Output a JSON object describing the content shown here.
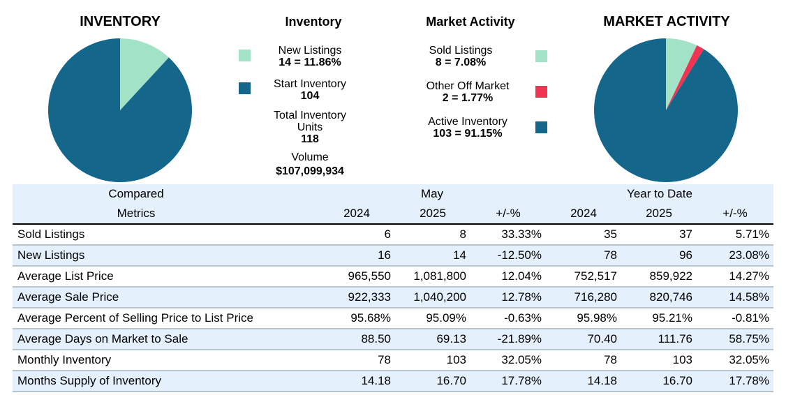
{
  "colors": {
    "light": "#a2e2c7",
    "red": "#f03553",
    "dark": "#14668a",
    "row_alt": "#e4f0fb"
  },
  "inventory_pie_title": "INVENTORY",
  "market_pie_title": "MARKET ACTIVITY",
  "inventory_legend": {
    "title": "Inventory",
    "new_listings_label": "New Listings",
    "new_listings_value": "14 = 11.86%",
    "start_inventory_label": "Start Inventory",
    "start_inventory_value": "104",
    "total_label_line1": "Total Inventory",
    "total_label_line2": "Units",
    "total_value": "118",
    "volume_label": "Volume",
    "volume_value": "$107,099,934"
  },
  "market_legend": {
    "title": "Market Activity",
    "sold_label": "Sold Listings",
    "sold_value": "8 = 7.08%",
    "off_market_label": "Other Off Market",
    "off_market_value": "2 = 1.77%",
    "active_label": "Active Inventory",
    "active_value": "103 = 91.15%"
  },
  "chart_data": [
    {
      "type": "pie",
      "title": "INVENTORY",
      "slices": [
        {
          "label": "New Listings",
          "value": 14,
          "percent": 11.86,
          "color": "#a2e2c7"
        },
        {
          "label": "Start Inventory",
          "value": 104,
          "percent": 88.14,
          "color": "#14668a"
        }
      ]
    },
    {
      "type": "pie",
      "title": "MARKET ACTIVITY",
      "slices": [
        {
          "label": "Sold Listings",
          "value": 8,
          "percent": 7.08,
          "color": "#a2e2c7"
        },
        {
          "label": "Other Off Market",
          "value": 2,
          "percent": 1.77,
          "color": "#f03553"
        },
        {
          "label": "Active Inventory",
          "value": 103,
          "percent": 91.15,
          "color": "#14668a"
        }
      ]
    }
  ],
  "table": {
    "header_compared": "Compared",
    "header_metrics": "Metrics",
    "group_month": "May",
    "group_ytd": "Year to Date",
    "sub_headers": [
      "2024",
      "2025",
      "+/-%",
      "2024",
      "2025",
      "+/-%"
    ],
    "rows": [
      {
        "metric": "Sold Listings",
        "cells": [
          "6",
          "8",
          "33.33%",
          "35",
          "37",
          "5.71%"
        ]
      },
      {
        "metric": "New Listings",
        "cells": [
          "16",
          "14",
          "-12.50%",
          "78",
          "96",
          "23.08%"
        ]
      },
      {
        "metric": "Average List Price",
        "cells": [
          "965,550",
          "1,081,800",
          "12.04%",
          "752,517",
          "859,922",
          "14.27%"
        ]
      },
      {
        "metric": "Average Sale Price",
        "cells": [
          "922,333",
          "1,040,200",
          "12.78%",
          "716,280",
          "820,746",
          "14.58%"
        ]
      },
      {
        "metric": "Average Percent of Selling Price to List Price",
        "cells": [
          "95.68%",
          "95.09%",
          "-0.63%",
          "95.98%",
          "95.21%",
          "-0.81%"
        ]
      },
      {
        "metric": "Average Days on Market to Sale",
        "cells": [
          "88.50",
          "69.13",
          "-21.89%",
          "70.40",
          "111.76",
          "58.75%"
        ]
      },
      {
        "metric": "Monthly Inventory",
        "cells": [
          "78",
          "103",
          "32.05%",
          "78",
          "103",
          "32.05%"
        ]
      },
      {
        "metric": "Months Supply of Inventory",
        "cells": [
          "14.18",
          "16.70",
          "17.78%",
          "14.18",
          "16.70",
          "17.78%"
        ]
      }
    ]
  }
}
